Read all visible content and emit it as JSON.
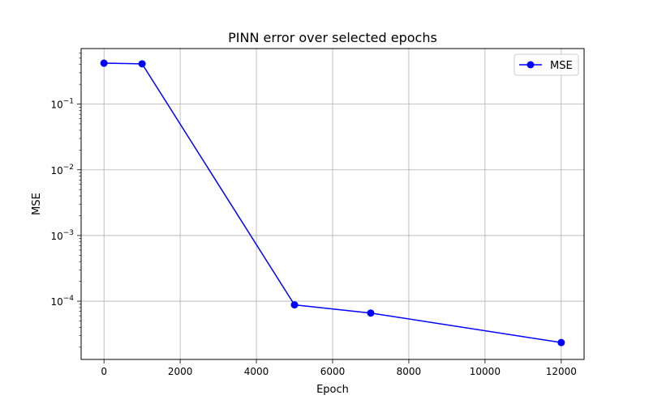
{
  "chart_data": {
    "type": "line",
    "title": "PINN error over selected epochs",
    "xlabel": "Epoch",
    "ylabel": "MSE",
    "yscale": "log",
    "grid": true,
    "legend_position": "top-right",
    "xlim": [
      -600,
      12600
    ],
    "ylim": [
      1.3e-05,
      0.7
    ],
    "x_ticks": [
      0,
      2000,
      4000,
      6000,
      8000,
      10000,
      12000
    ],
    "x_tick_labels": [
      "0",
      "2000",
      "4000",
      "6000",
      "8000",
      "10000",
      "12000"
    ],
    "y_ticks": [
      {
        "value": 0.1,
        "base": "10",
        "exp": "−1"
      },
      {
        "value": 0.01,
        "base": "10",
        "exp": "−2"
      },
      {
        "value": 0.001,
        "base": "10",
        "exp": "−3"
      },
      {
        "value": 0.0001,
        "base": "10",
        "exp": "−4"
      }
    ],
    "series": [
      {
        "name": "MSE",
        "color": "#0000ff",
        "marker": "circle",
        "x": [
          0,
          1000,
          5000,
          7000,
          12000
        ],
        "y": [
          0.42,
          0.41,
          8.8e-05,
          6.6e-05,
          2.35e-05
        ]
      }
    ]
  }
}
